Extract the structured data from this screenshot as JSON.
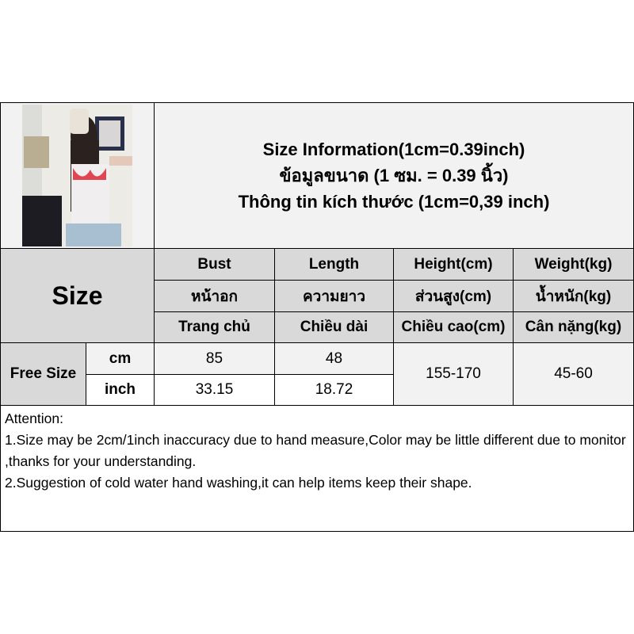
{
  "title": {
    "line1": "Size Information(1cm=0.39inch)",
    "line2": "ข้อมูลขนาด (1 ซม. = 0.39 นิ้ว)",
    "line3": "Thông tin kích thước (1cm=0,39 inch)"
  },
  "size_label": "Size",
  "headers": [
    {
      "en": "Bust",
      "th": "หน้าอก",
      "vi": "Trang chủ"
    },
    {
      "en": "Length",
      "th": "ความยาว",
      "vi": "Chiều dài"
    },
    {
      "en": "Height(cm)",
      "th": "ส่วนสูง(cm)",
      "vi": "Chiều cao(cm)"
    },
    {
      "en": "Weight(kg)",
      "th": "น้ำหนัก(kg)",
      "vi": "Cân nặng(kg)"
    }
  ],
  "rows": {
    "size_name": "Free Size",
    "cm": {
      "unit": "cm",
      "bust": "85",
      "length": "48"
    },
    "inch": {
      "unit": "inch",
      "bust": "33.15",
      "length": "18.72"
    },
    "height": "155-170",
    "weight": "45-60"
  },
  "attention": {
    "heading": "Attention:",
    "line1": "1.Size may be 2cm/1inch inaccuracy due to hand measure,Color may be little different due to monitor ,thanks for your understanding.",
    "line2": "2.Suggestion of cold water hand washing,it can help items keep their shape."
  }
}
